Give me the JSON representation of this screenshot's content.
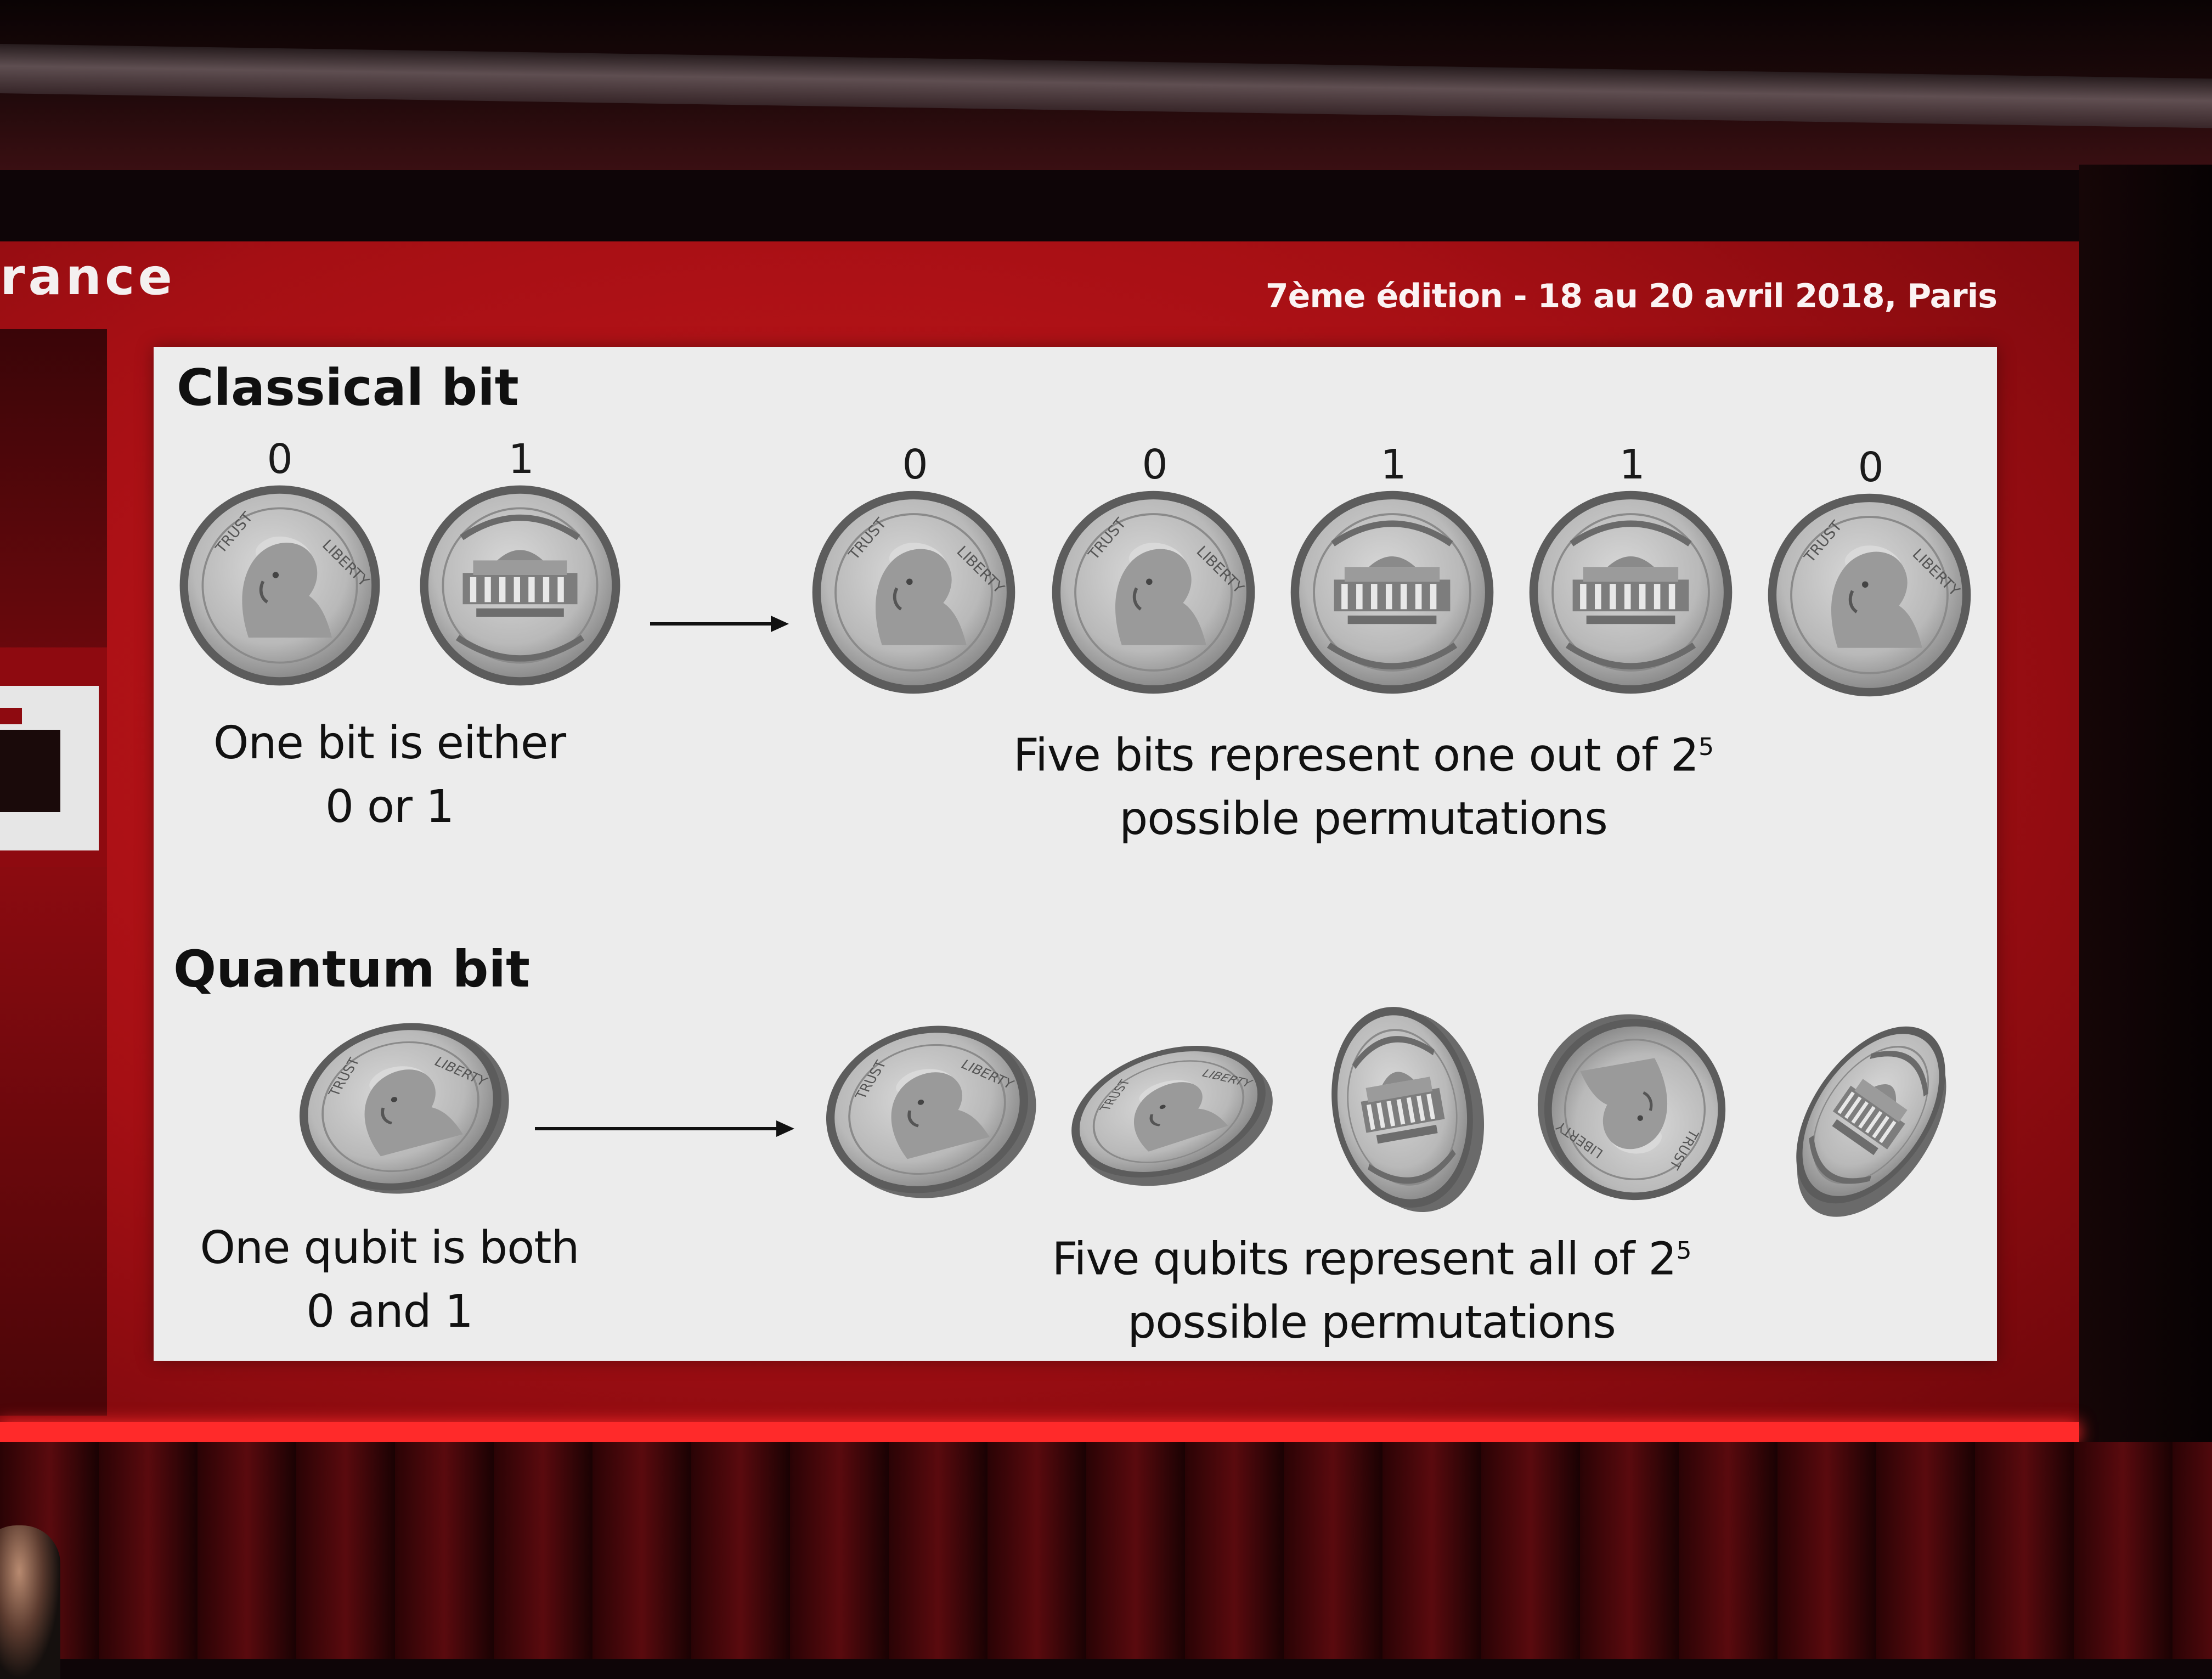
{
  "header": {
    "brand_fragment": "rance",
    "edition": "7ème édition - 18 au 20 avril 2018, Paris"
  },
  "slide": {
    "classical": {
      "title": "Classical bit",
      "single_bits": [
        "0",
        "1"
      ],
      "single_caption": [
        "One bit is either",
        "0 or 1"
      ],
      "five_bits": [
        "0",
        "0",
        "1",
        "1",
        "0"
      ],
      "five_caption_line1": "Five bits represent one out of 2",
      "five_caption_sup": "5",
      "five_caption_line2": "possible permutations"
    },
    "quantum": {
      "title": "Quantum bit",
      "single_caption": [
        "One qubit is both",
        "0 and 1"
      ],
      "five_caption_line1": "Five qubits represent all of 2",
      "five_caption_sup": "5",
      "five_caption_line2": "possible permutations"
    }
  },
  "colors": {
    "stage_red": "#b3121a",
    "slide_bg": "#ececec",
    "coin_fill": "#bdbdbd",
    "coin_rim": "#5a5a5a"
  },
  "icons": {
    "coin_heads": "nickel-heads-icon",
    "coin_tails": "nickel-tails-icon",
    "arrow": "arrow-right-icon"
  }
}
